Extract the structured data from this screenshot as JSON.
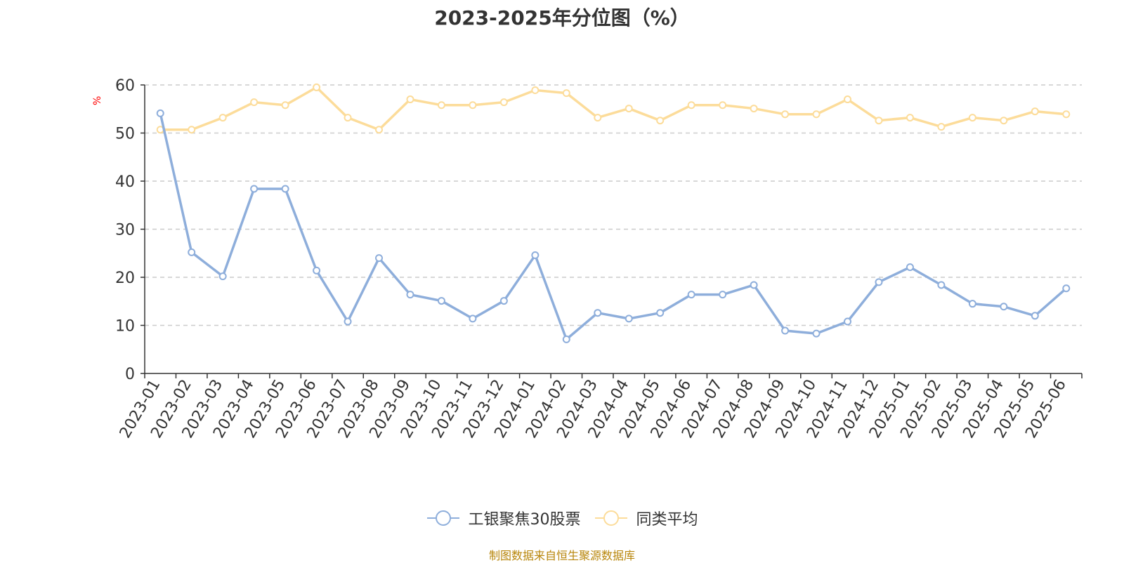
{
  "chart_data": {
    "type": "line",
    "title": "2023-2025年分位图（%）",
    "ylabel": "%",
    "ylim": [
      0,
      60
    ],
    "yticks": [
      0,
      10,
      20,
      30,
      40,
      50,
      60
    ],
    "grid": true,
    "legend_position": "bottom",
    "categories": [
      "2023-01",
      "2023-02",
      "2023-03",
      "2023-04",
      "2023-05",
      "2023-06",
      "2023-07",
      "2023-08",
      "2023-09",
      "2023-10",
      "2023-11",
      "2023-12",
      "2024-01",
      "2024-02",
      "2024-03",
      "2024-04",
      "2024-05",
      "2024-06",
      "2024-07",
      "2024-08",
      "2024-09",
      "2024-10",
      "2024-11",
      "2024-12",
      "2025-01",
      "2025-02",
      "2025-03",
      "2025-04",
      "2025-05",
      "2025-06"
    ],
    "series": [
      {
        "name": "工银聚焦30股票",
        "color": "#8eaedb",
        "values": [
          54.1,
          25.2,
          20.2,
          38.4,
          38.4,
          21.4,
          10.8,
          24.0,
          16.4,
          15.1,
          11.4,
          15.1,
          24.6,
          7.1,
          12.6,
          11.4,
          12.6,
          16.4,
          16.4,
          18.4,
          8.9,
          8.3,
          10.8,
          19.0,
          22.1,
          18.4,
          14.5,
          13.9,
          12.0,
          17.7
        ]
      },
      {
        "name": "同类平均",
        "color": "#fcdc9a",
        "values": [
          50.7,
          50.7,
          53.2,
          56.4,
          55.8,
          59.5,
          53.2,
          50.7,
          57.0,
          55.8,
          55.8,
          56.4,
          58.9,
          58.3,
          53.2,
          55.1,
          52.6,
          55.8,
          55.8,
          55.1,
          53.9,
          53.9,
          57.0,
          52.6,
          53.2,
          51.3,
          53.2,
          52.6,
          54.5,
          53.9
        ]
      }
    ]
  },
  "source_text": "制图数据来自恒生聚源数据库"
}
